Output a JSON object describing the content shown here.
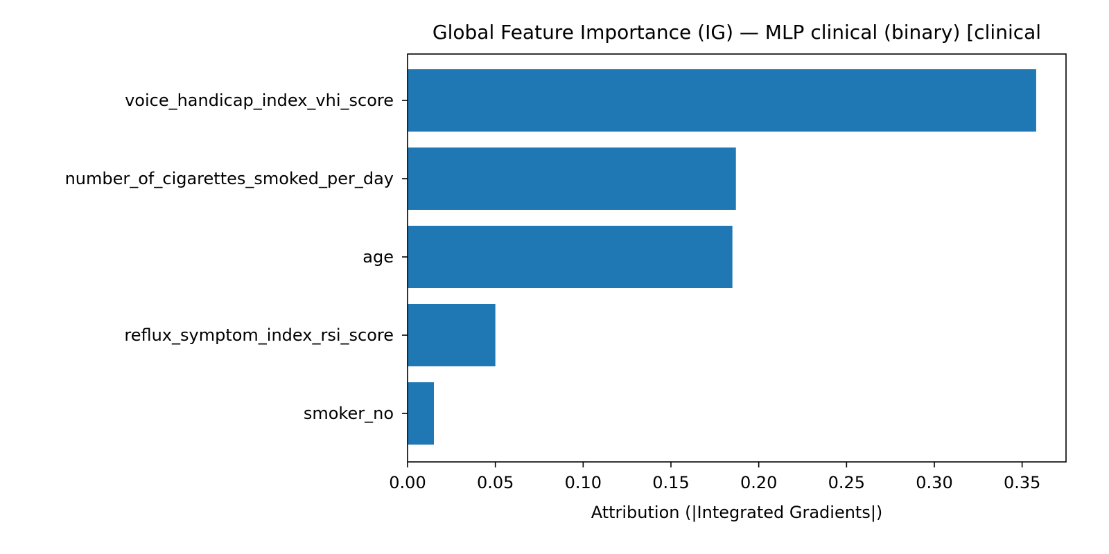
{
  "chart_data": {
    "type": "bar",
    "orientation": "horizontal",
    "title": "Global Feature Importance (IG) — MLP clinical (binary) [clinical",
    "xlabel": "Attribution (|Integrated Gradients|)",
    "ylabel": "",
    "categories": [
      "voice_handicap_index_vhi_score",
      "number_of_cigarettes_smoked_per_day",
      "age",
      "reflux_symptom_index_rsi_score",
      "smoker_no"
    ],
    "values": [
      0.358,
      0.187,
      0.185,
      0.05,
      0.015
    ],
    "xlim": [
      0.0,
      0.375
    ],
    "xticks": [
      0.0,
      0.05,
      0.1,
      0.15,
      0.2,
      0.25,
      0.3,
      0.35
    ],
    "xtick_labels": [
      "0.00",
      "0.05",
      "0.10",
      "0.15",
      "0.20",
      "0.25",
      "0.30",
      "0.35"
    ],
    "bar_color": "#1f77b4",
    "grid": false,
    "legend": "none"
  }
}
